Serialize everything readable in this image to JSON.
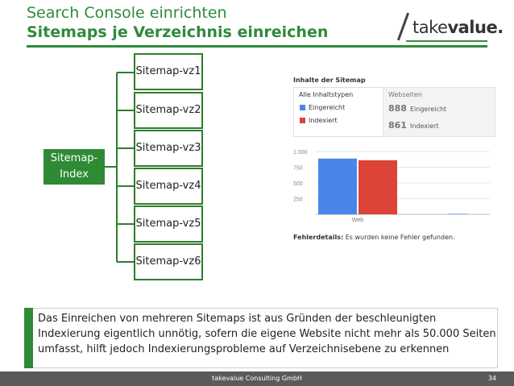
{
  "header": {
    "title_line1": "Search Console einrichten",
    "title_line2": "Sitemaps je Verzeichnis einreichen",
    "logo_light": "take",
    "logo_bold": "value."
  },
  "diagram": {
    "root": "Sitemap-Index",
    "children": [
      "Sitemap-vz1",
      "Sitemap-vz2",
      "Sitemap-vz3",
      "Sitemap-vz4",
      "Sitemap-vz5",
      "Sitemap-vz6"
    ]
  },
  "screenshot": {
    "title": "Inhalte der Sitemap",
    "legend_header": "Alle Inhaltstypen",
    "legend_items": [
      {
        "label": "Eingereicht",
        "color": "#4a86e8"
      },
      {
        "label": "Indexiert",
        "color": "#db4437"
      }
    ],
    "web_header": "Webseiten",
    "web_rows": [
      {
        "num": "888",
        "label": "Eingereicht"
      },
      {
        "num": "861",
        "label": "Indexiert"
      }
    ],
    "footer_bold": "Fehlerdetails:",
    "footer_text": " Es wurden keine Fehler gefunden."
  },
  "chart_data": {
    "type": "bar",
    "categories": [
      "Web",
      ""
    ],
    "series": [
      {
        "name": "Eingereicht",
        "values": [
          888,
          8
        ],
        "color": "#4a86e8"
      },
      {
        "name": "Indexiert",
        "values": [
          861,
          0
        ],
        "color": "#db4437"
      }
    ],
    "yticks": [
      "1.000",
      "750",
      "500",
      "250"
    ],
    "ylim": [
      0,
      1000
    ],
    "grid": true
  },
  "note": {
    "text": "Das Einreichen von mehreren Sitemaps ist aus Gründen der beschleunigten Indexierung eigentlich unnötig, sofern die eigene Website nicht mehr als 50.000 Seiten umfasst, hilft jedoch Indexierungsprobleme auf Verzeichnisebene zu erkennen"
  },
  "footer": {
    "company": "takevalue Consulting GmbH",
    "page": "34"
  }
}
